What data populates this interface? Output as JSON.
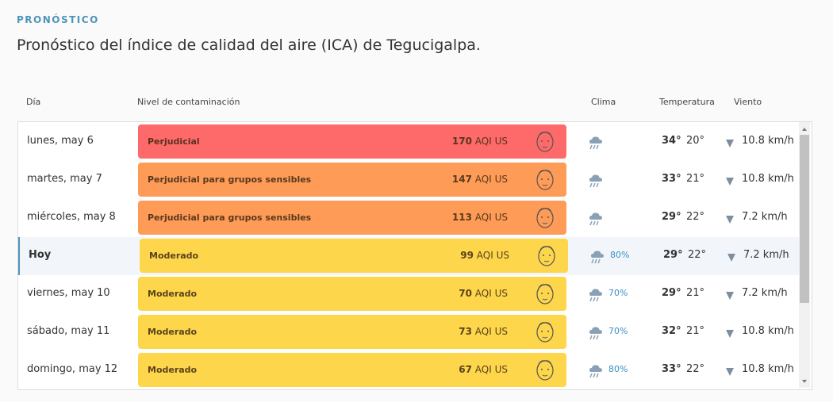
{
  "header": {
    "label": "PRONÓSTICO",
    "title": "Pronóstico del índice de calidad del aire (ICA) de Tegucigalpa."
  },
  "table": {
    "columns": [
      "Día",
      "Nivel de contaminación",
      "Clima",
      "Temperatura",
      "Viento"
    ],
    "aqi_unit": "AQI US",
    "rows": [
      {
        "day": "lunes, may 6",
        "level": "Perjudicial",
        "aqi": 170,
        "color": "#fe6a69",
        "rain": null,
        "high": "34°",
        "low": "20°",
        "wind": "10.8 km/h",
        "today": false
      },
      {
        "day": "martes, may 7",
        "level": "Perjudicial para grupos sensibles",
        "aqi": 147,
        "color": "#fe9b57",
        "rain": null,
        "high": "33°",
        "low": "21°",
        "wind": "10.8 km/h",
        "today": false
      },
      {
        "day": "miércoles, may 8",
        "level": "Perjudicial para grupos sensibles",
        "aqi": 113,
        "color": "#fe9b57",
        "rain": null,
        "high": "29°",
        "low": "22°",
        "wind": "7.2 km/h",
        "today": false
      },
      {
        "day": "Hoy",
        "level": "Moderado",
        "aqi": 99,
        "color": "#fdd64b",
        "rain": "80%",
        "high": "29°",
        "low": "22°",
        "wind": "7.2 km/h",
        "today": true
      },
      {
        "day": "viernes, may 10",
        "level": "Moderado",
        "aqi": 70,
        "color": "#fdd64b",
        "rain": "70%",
        "high": "29°",
        "low": "21°",
        "wind": "7.2 km/h",
        "today": false
      },
      {
        "day": "sábado, may 11",
        "level": "Moderado",
        "aqi": 73,
        "color": "#fdd64b",
        "rain": "70%",
        "high": "32°",
        "low": "21°",
        "wind": "10.8 km/h",
        "today": false
      },
      {
        "day": "domingo, may 12",
        "level": "Moderado",
        "aqi": 67,
        "color": "#fdd64b",
        "rain": "80%",
        "high": "33°",
        "low": "22°",
        "wind": "10.8 km/h",
        "today": false
      }
    ]
  }
}
